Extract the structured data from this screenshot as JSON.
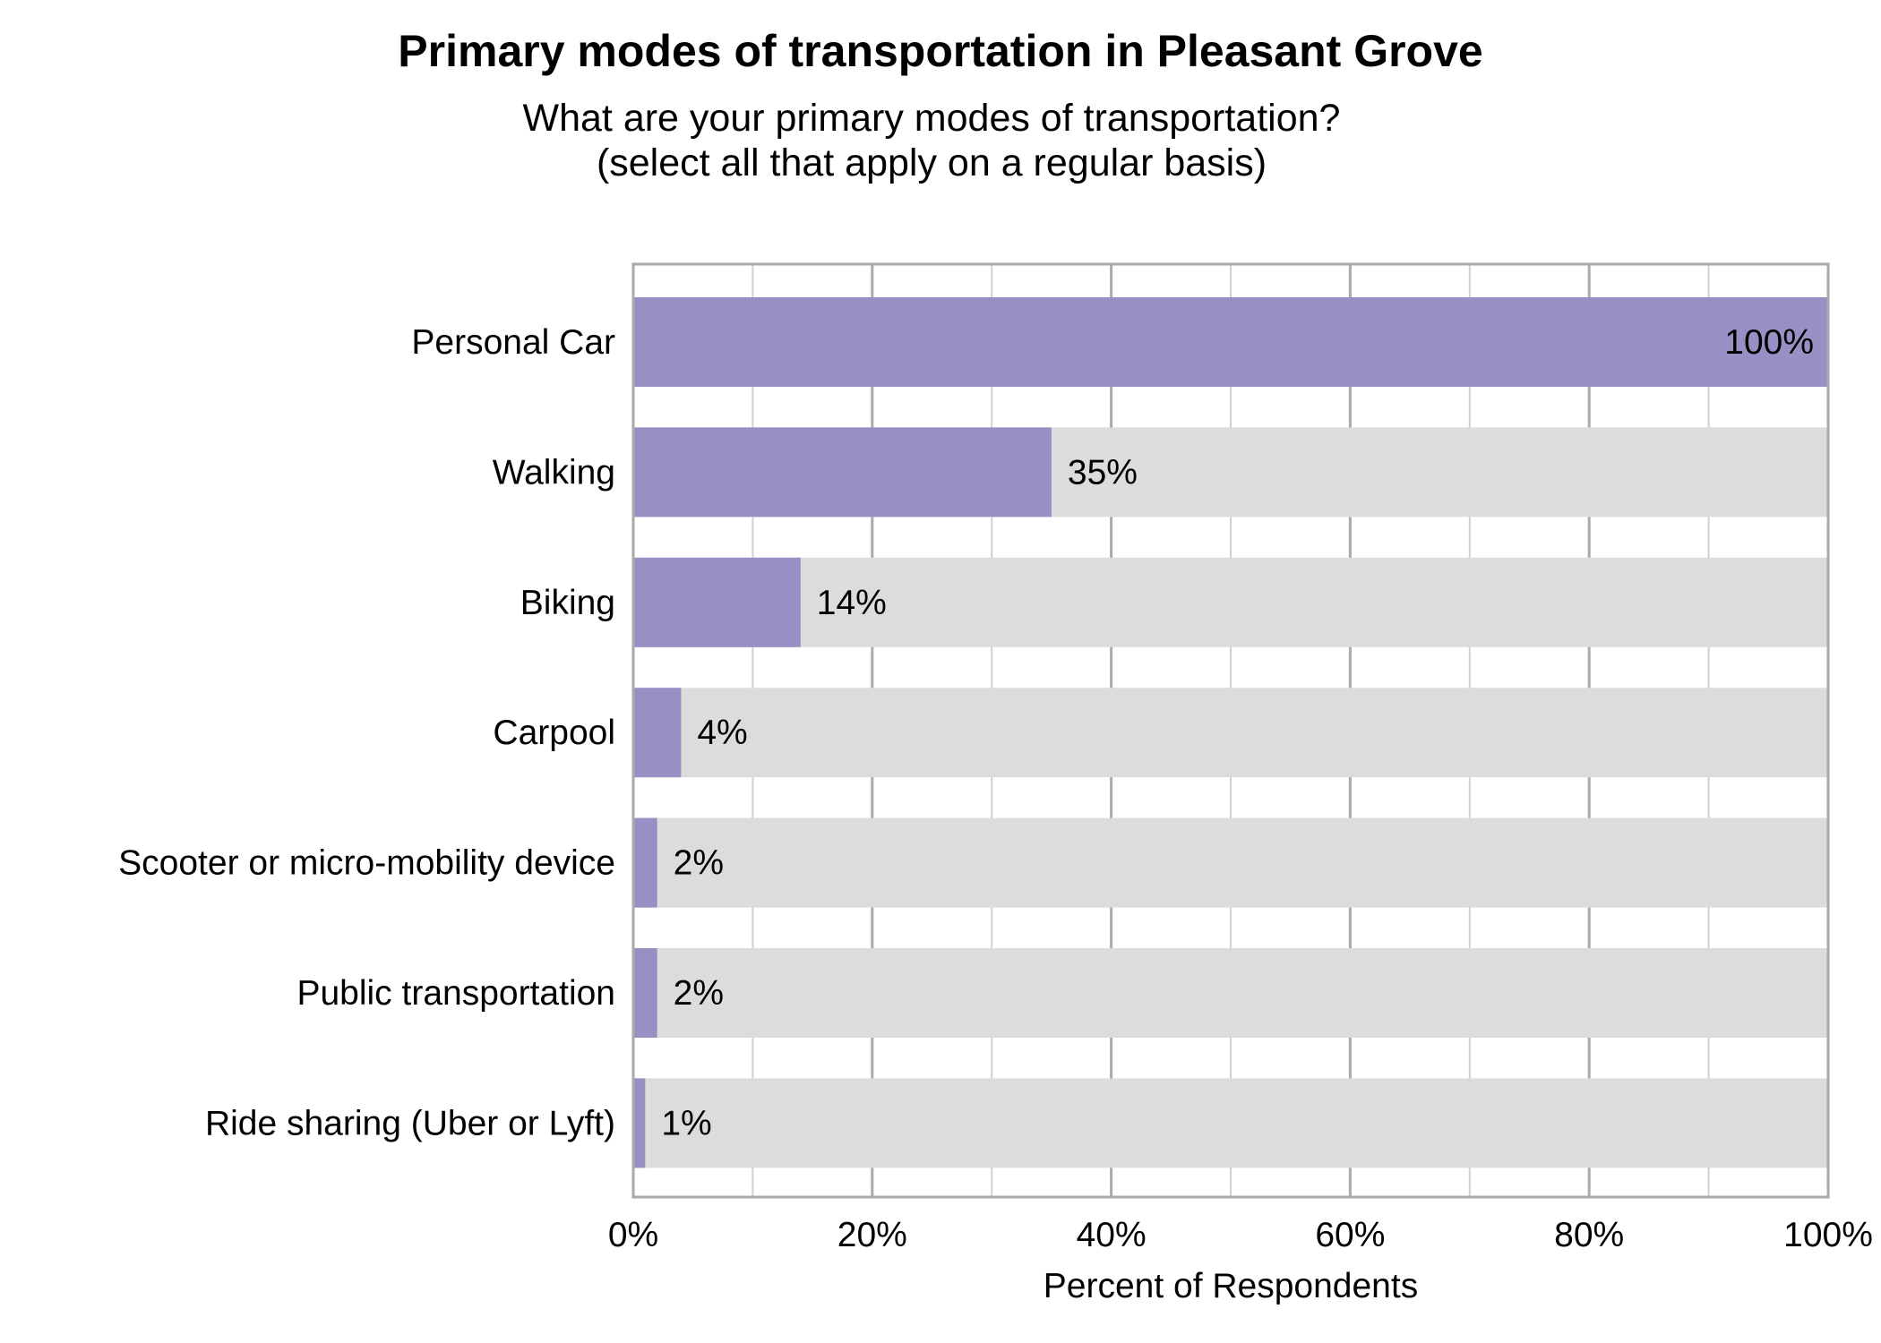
{
  "chart_data": {
    "type": "bar",
    "orientation": "horizontal",
    "title": "Primary modes of transportation in Pleasant Grove",
    "subtitle": [
      "What are your primary modes of transportation?",
      "(select all that apply on a regular basis)"
    ],
    "xlabel": "Percent of Respondents",
    "ylabel": "",
    "categories": [
      "Personal Car",
      "Walking",
      "Biking",
      "Carpool",
      "Scooter or micro-mobility device",
      "Public transportation",
      "Ride sharing (Uber or Lyft)"
    ],
    "values": [
      100,
      35,
      14,
      4,
      2,
      2,
      1
    ],
    "data_labels": [
      "100%",
      "35%",
      "14%",
      "4%",
      "2%",
      "2%",
      "1%"
    ],
    "xlim": [
      0,
      100
    ],
    "xticks": [
      0,
      20,
      40,
      60,
      80,
      100
    ],
    "xtick_labels": [
      "0%",
      "20%",
      "40%",
      "60%",
      "80%",
      "100%"
    ],
    "grid": true,
    "colors": {
      "bar": "#998fc4",
      "background_bar": "#dcdcdc",
      "grid_major": "#aaaaaa",
      "grid_minor": "#d0d0d0"
    }
  }
}
